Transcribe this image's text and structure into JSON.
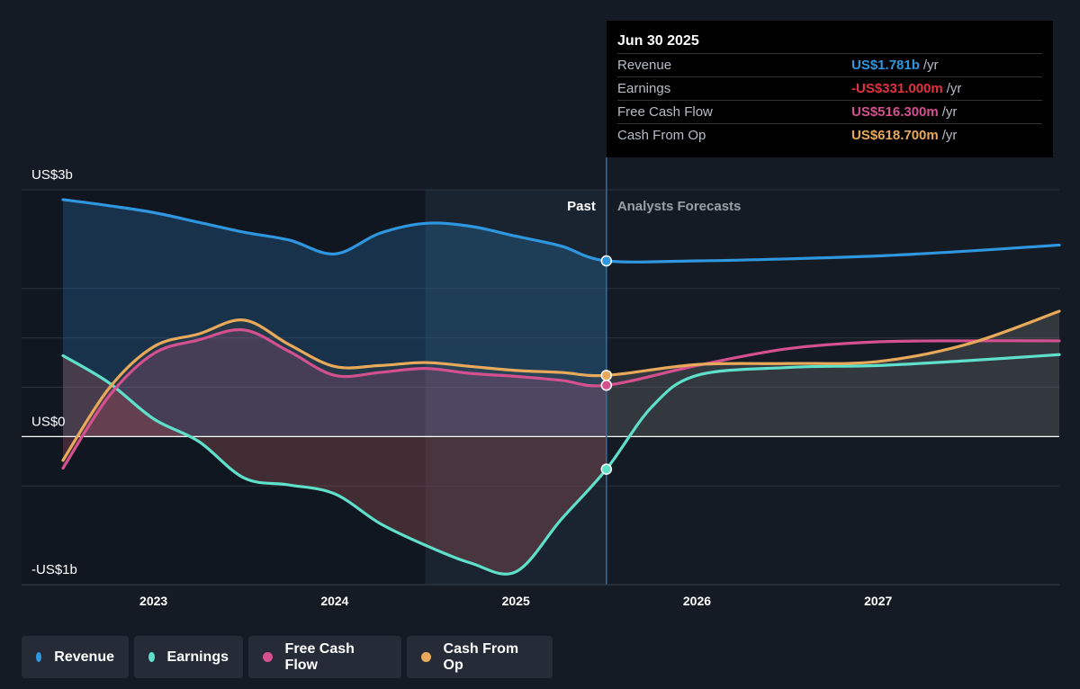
{
  "tooltip": {
    "date": "Jun 30 2025",
    "rows": [
      {
        "label": "Revenue",
        "value": "US$1.781b",
        "unit": "/yr",
        "color": "#2f96e0"
      },
      {
        "label": "Earnings",
        "value": "-US$331.000m",
        "unit": "/yr",
        "color": "#e0323f"
      },
      {
        "label": "Free Cash Flow",
        "value": "US$516.300m",
        "unit": "/yr",
        "color": "#d4508e"
      },
      {
        "label": "Cash From Op",
        "value": "US$618.700m",
        "unit": "/yr",
        "color": "#e8aa5a"
      }
    ]
  },
  "legend": [
    {
      "label": "Revenue",
      "color": "#2f96e0"
    },
    {
      "label": "Earnings",
      "color": "#5fe0cb"
    },
    {
      "label": "Free Cash Flow",
      "color": "#d4508e"
    },
    {
      "label": "Cash From Op",
      "color": "#e8aa5a"
    }
  ],
  "chart_data": {
    "type": "line",
    "y_unit": "US$ billions",
    "y_ticks": [
      {
        "value": 2.5,
        "label": "US$3b"
      },
      {
        "value": 0,
        "label": "US$0"
      },
      {
        "value": -1.5,
        "label": "-US$1b"
      }
    ],
    "ylim": [
      -1.5,
      2.5
    ],
    "xlim": [
      2022.5,
      2028.0
    ],
    "x_ticks": [
      "2023",
      "2024",
      "2025",
      "2026",
      "2027"
    ],
    "past_label": "Past",
    "forecast_label": "Analysts Forecasts",
    "divider_x": 2025.5,
    "highlight_x": [
      2024.5,
      2025.5
    ],
    "series": [
      {
        "name": "Revenue",
        "color": "#2f96e0",
        "x": [
          2022.5,
          2022.75,
          2023.0,
          2023.25,
          2023.5,
          2023.75,
          2024.0,
          2024.25,
          2024.5,
          2024.75,
          2025.0,
          2025.25,
          2025.5,
          2026.0,
          2026.5,
          2027.0,
          2027.5,
          2028.0
        ],
        "y": [
          2.4,
          2.34,
          2.27,
          2.17,
          2.07,
          1.99,
          1.85,
          2.06,
          2.16,
          2.13,
          2.03,
          1.93,
          1.78,
          1.78,
          1.8,
          1.83,
          1.88,
          1.94
        ]
      },
      {
        "name": "Earnings",
        "color": "#5fe0cb",
        "x": [
          2022.5,
          2022.75,
          2023.0,
          2023.25,
          2023.5,
          2023.75,
          2024.0,
          2024.25,
          2024.5,
          2024.75,
          2025.0,
          2025.25,
          2025.5,
          2025.75,
          2026.0,
          2026.5,
          2027.0,
          2027.5,
          2028.0
        ],
        "y": [
          0.82,
          0.55,
          0.18,
          -0.05,
          -0.42,
          -0.49,
          -0.58,
          -0.88,
          -1.1,
          -1.28,
          -1.37,
          -0.84,
          -0.33,
          0.3,
          0.62,
          0.7,
          0.72,
          0.77,
          0.83
        ]
      },
      {
        "name": "Free Cash Flow",
        "color": "#d4508e",
        "x": [
          2022.5,
          2022.75,
          2023.0,
          2023.25,
          2023.5,
          2023.75,
          2024.0,
          2024.25,
          2024.5,
          2024.75,
          2025.0,
          2025.25,
          2025.5,
          2026.0,
          2026.5,
          2027.0,
          2027.5,
          2028.0
        ],
        "y": [
          -0.32,
          0.4,
          0.84,
          0.98,
          1.08,
          0.86,
          0.62,
          0.65,
          0.69,
          0.64,
          0.61,
          0.57,
          0.52,
          0.72,
          0.89,
          0.96,
          0.97,
          0.97
        ]
      },
      {
        "name": "Cash From Op",
        "color": "#e8aa5a",
        "x": [
          2022.5,
          2022.75,
          2023.0,
          2023.25,
          2023.5,
          2023.75,
          2024.0,
          2024.25,
          2024.5,
          2024.75,
          2025.0,
          2025.25,
          2025.5,
          2026.0,
          2026.5,
          2027.0,
          2027.5,
          2028.0
        ],
        "y": [
          -0.24,
          0.48,
          0.91,
          1.04,
          1.18,
          0.93,
          0.71,
          0.72,
          0.75,
          0.71,
          0.67,
          0.65,
          0.62,
          0.73,
          0.74,
          0.76,
          0.94,
          1.27
        ]
      }
    ]
  }
}
